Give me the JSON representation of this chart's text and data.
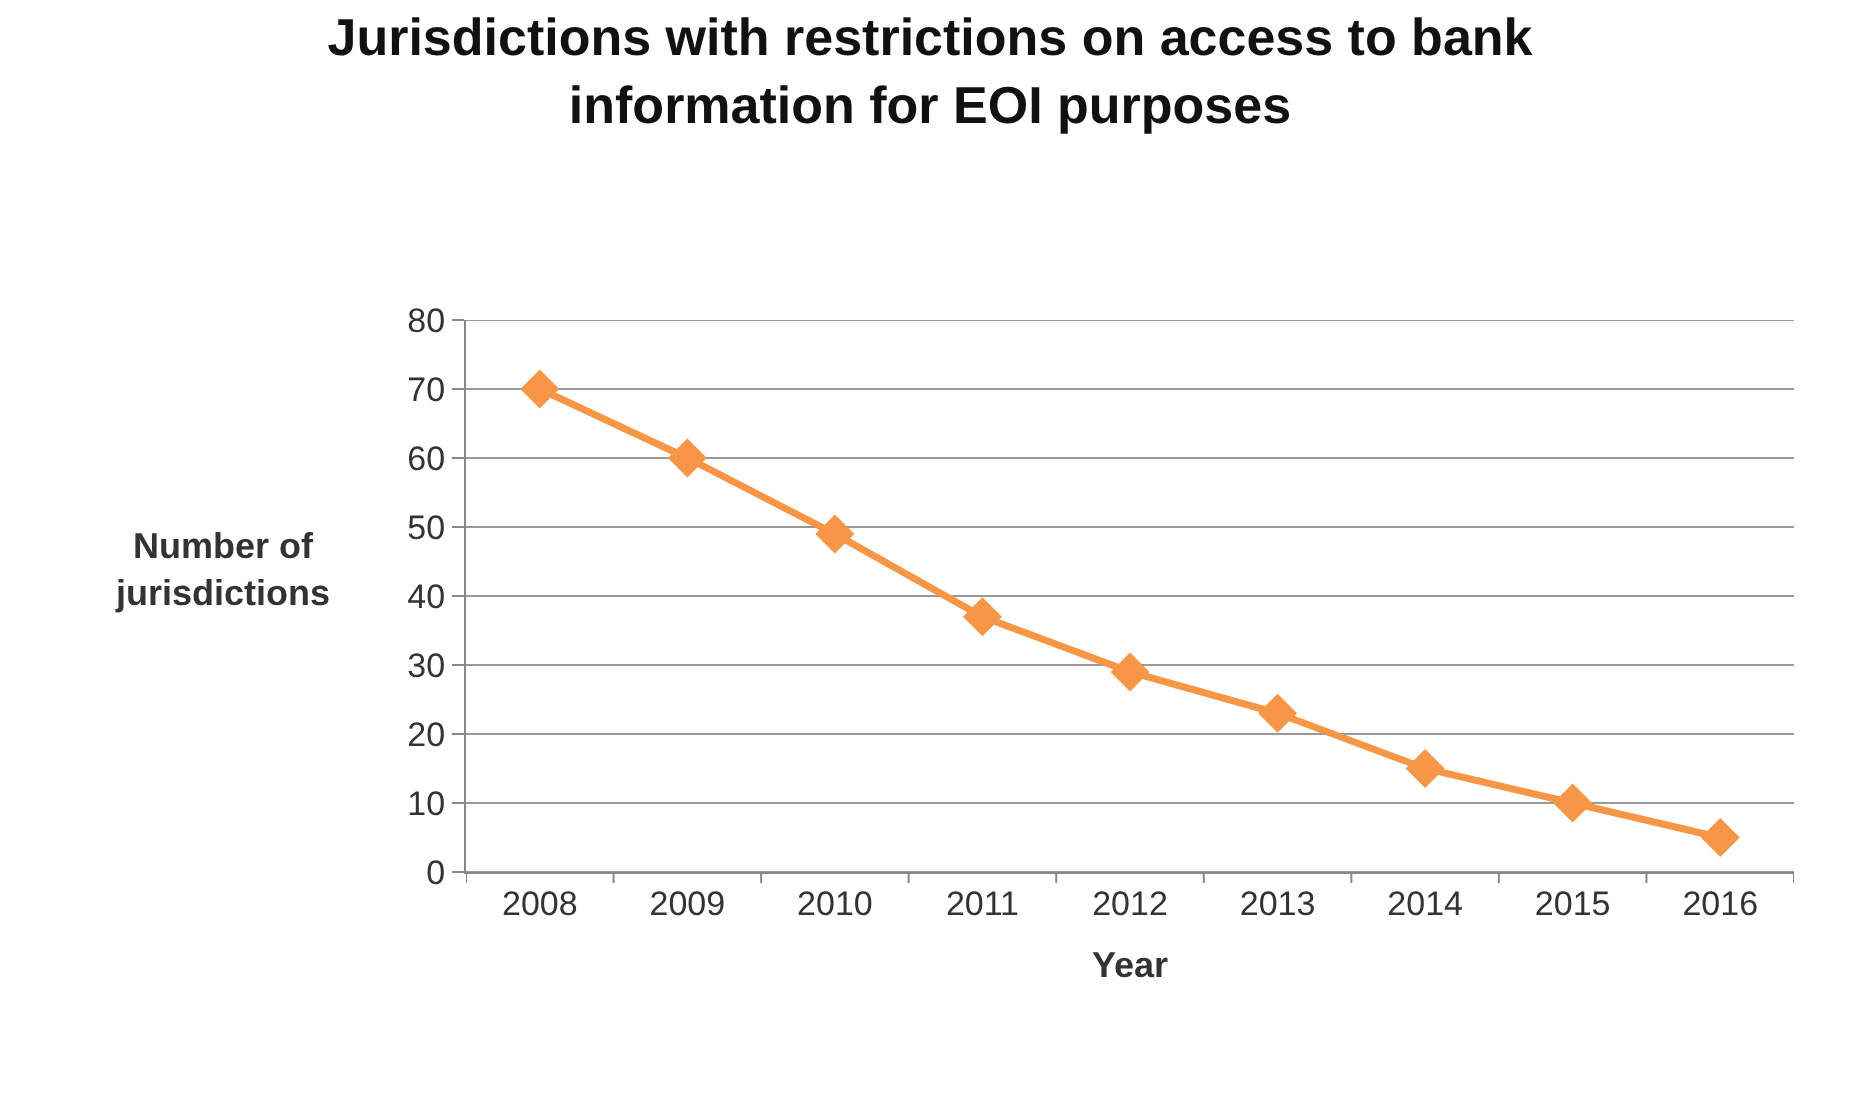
{
  "chart_data": {
    "type": "line",
    "title": "Jurisdictions with restrictions on access to bank\ninformation for EOI purposes",
    "xlabel": "Year",
    "ylabel": "Number of\njurisdictions",
    "categories": [
      "2008",
      "2009",
      "2010",
      "2011",
      "2012",
      "2013",
      "2014",
      "2015",
      "2016"
    ],
    "series": [
      {
        "color": "#f79646",
        "values": [
          70,
          60,
          49,
          37,
          29,
          23,
          15,
          10,
          5
        ]
      }
    ],
    "ylim": [
      0,
      80
    ],
    "yticks": [
      0,
      10,
      20,
      30,
      40,
      50,
      60,
      70,
      80
    ],
    "grid": "y",
    "marker": "diamond",
    "line_style": "solid",
    "legend": false
  }
}
